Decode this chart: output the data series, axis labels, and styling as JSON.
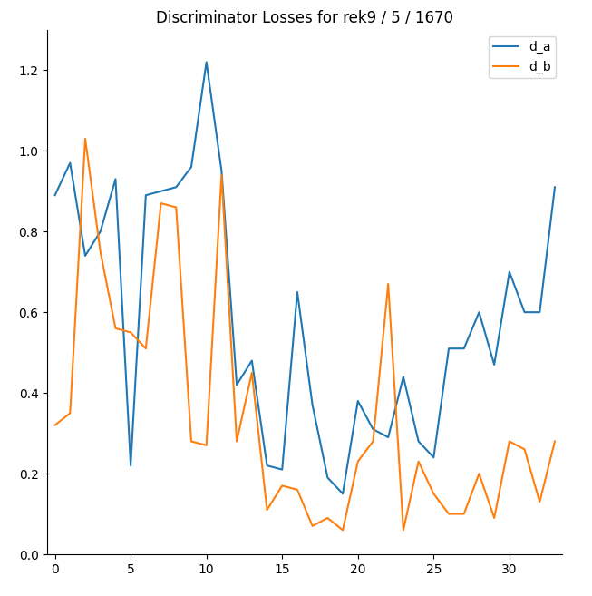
{
  "title": "Discriminator Losses for rek9 / 5 / 1670",
  "d_a": [
    0.89,
    0.97,
    0.74,
    0.8,
    0.93,
    0.22,
    0.89,
    0.9,
    0.91,
    0.96,
    1.22,
    0.95,
    0.42,
    0.48,
    0.22,
    0.21,
    0.65,
    0.37,
    0.19,
    0.15,
    0.38,
    0.31,
    0.29,
    0.44,
    0.28,
    0.24,
    0.51,
    0.51,
    0.6,
    0.47,
    0.7,
    0.6,
    0.6,
    0.91
  ],
  "d_b": [
    0.32,
    0.35,
    1.03,
    0.75,
    0.56,
    0.55,
    0.51,
    0.87,
    0.86,
    0.28,
    0.27,
    0.94,
    0.28,
    0.45,
    0.11,
    0.17,
    0.16,
    0.07,
    0.09,
    0.06,
    0.23,
    0.28,
    0.67,
    0.06,
    0.23,
    0.15,
    0.1,
    0.1,
    0.2,
    0.09,
    0.28,
    0.26,
    0.13,
    0.28
  ],
  "color_a": "#1f77b4",
  "color_b": "#ff7f0e",
  "ylim": [
    0.0,
    1.3
  ],
  "xlim": [
    -0.5,
    33.5
  ],
  "title_fontsize": 12,
  "figsize": [
    6.53,
    6.57
  ],
  "dpi": 100
}
